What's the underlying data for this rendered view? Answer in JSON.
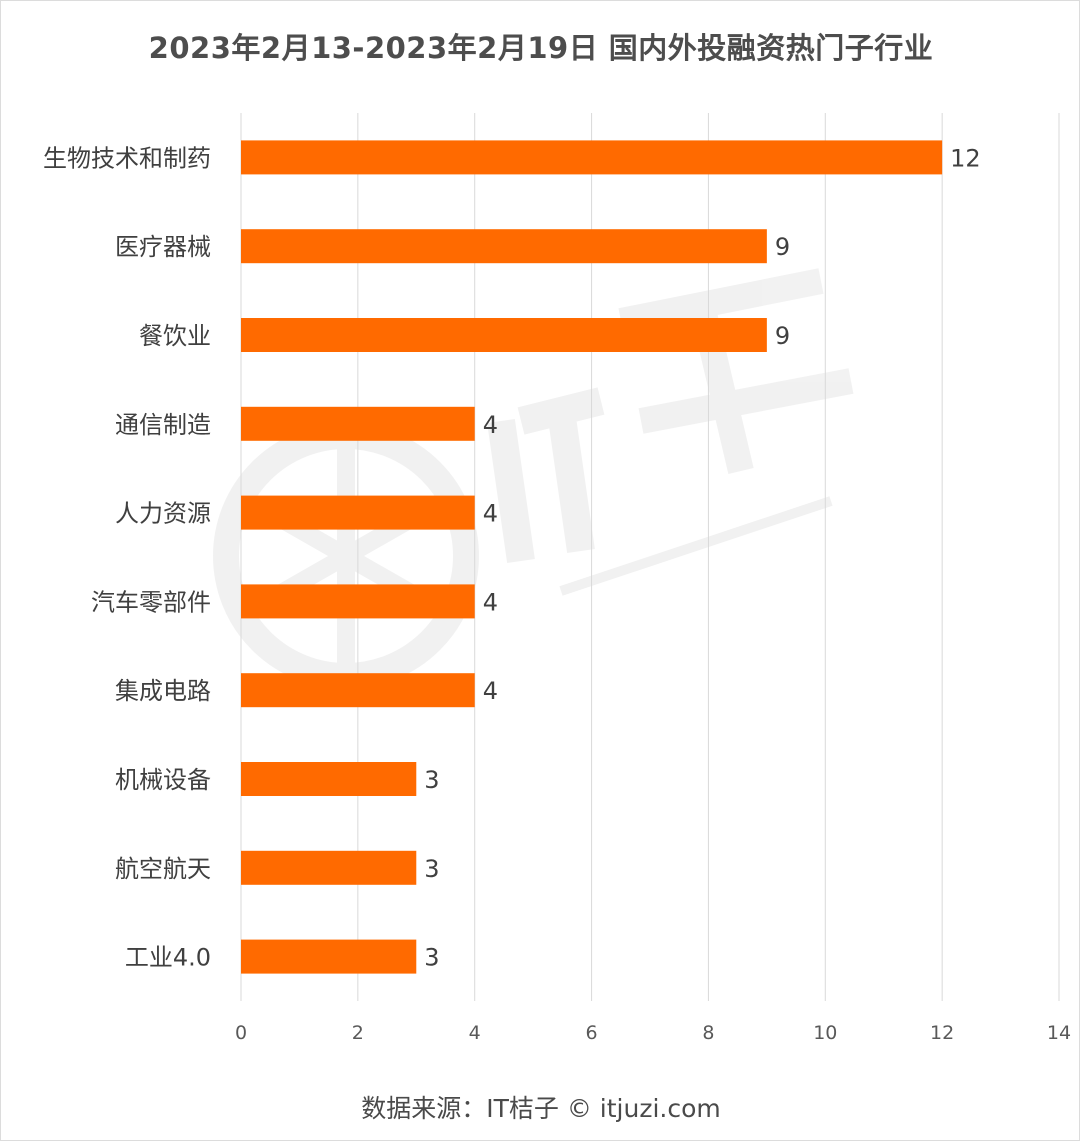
{
  "chart_data": {
    "type": "bar",
    "orientation": "horizontal",
    "title": "2023年2月13-2023年2月19日 国内外投融资热门子行业",
    "categories": [
      "生物技术和制药",
      "医疗器械",
      "餐饮业",
      "通信制造",
      "人力资源",
      "汽车零部件",
      "集成电路",
      "机械设备",
      "航空航天",
      "工业4.0"
    ],
    "values": [
      12,
      9,
      9,
      4,
      4,
      4,
      4,
      3,
      3,
      3
    ],
    "value_labels": [
      "12",
      "9",
      "9",
      "4",
      "4",
      "4",
      "4",
      "3",
      "3",
      "3"
    ],
    "xlim": [
      0,
      14
    ],
    "xticks": [
      "0",
      "2",
      "4",
      "6",
      "8",
      "10",
      "12",
      "14"
    ],
    "xlabel": "",
    "ylabel": "",
    "grid": "vertical",
    "bar_color": "#ff6a00",
    "source": "数据来源：IT桔子 © itjuzi.com"
  }
}
